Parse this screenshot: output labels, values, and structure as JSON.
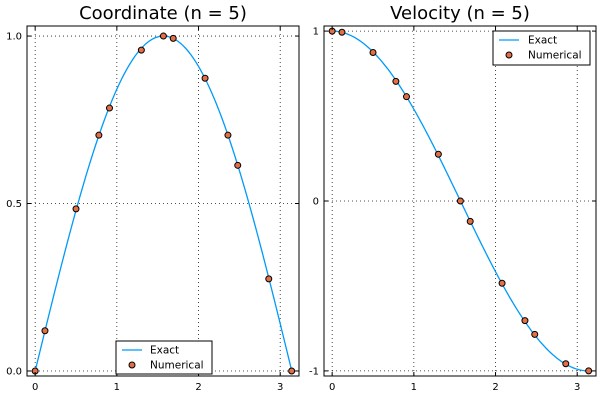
{
  "chart_data": [
    {
      "type": "scatter",
      "title": "Coordinate (n = 5)",
      "xlabel": "",
      "ylabel": "",
      "xlim": [
        -0.1,
        3.23
      ],
      "ylim": [
        -0.015,
        1.03
      ],
      "x_ticks": [
        0,
        1,
        2,
        3
      ],
      "x_tick_labels": [
        "0",
        "1",
        "2",
        "3"
      ],
      "y_ticks": [
        0,
        0.5,
        1
      ],
      "y_tick_labels": [
        "0.0",
        "0.5",
        "1.0"
      ],
      "grid": true,
      "legend_position": "bottom-right",
      "series": [
        {
          "name": "Exact",
          "kind": "line",
          "color": "#009AF9",
          "function": "sin"
        },
        {
          "name": "Numerical",
          "kind": "scatter",
          "color": "#E26F46",
          "x": [
            0.0,
            0.12,
            0.5,
            0.78,
            0.91,
            1.3,
            1.57,
            1.69,
            2.08,
            2.36,
            2.48,
            2.86,
            3.14
          ],
          "y": [
            0.0,
            0.12,
            0.484,
            0.704,
            0.785,
            0.958,
            1.0,
            0.993,
            0.874,
            0.704,
            0.614,
            0.275,
            0.0
          ]
        }
      ]
    },
    {
      "type": "scatter",
      "title": "Velocity (n = 5)",
      "xlabel": "",
      "ylabel": "",
      "xlim": [
        -0.1,
        3.23
      ],
      "ylim": [
        -1.03,
        1.03
      ],
      "x_ticks": [
        0,
        1,
        2,
        3
      ],
      "x_tick_labels": [
        "0",
        "1",
        "2",
        "3"
      ],
      "y_ticks": [
        -1,
        0,
        1
      ],
      "y_tick_labels": [
        "-1",
        "0",
        "1"
      ],
      "grid": true,
      "legend_position": "top-right",
      "series": [
        {
          "name": "Exact",
          "kind": "line",
          "color": "#009AF9",
          "function": "cos"
        },
        {
          "name": "Numerical",
          "kind": "scatter",
          "color": "#E26F46",
          "x": [
            0.0,
            0.12,
            0.5,
            0.78,
            0.91,
            1.3,
            1.57,
            1.69,
            2.08,
            2.36,
            2.48,
            2.86,
            3.14
          ],
          "y": [
            1.0,
            0.993,
            0.874,
            0.704,
            0.614,
            0.275,
            0.0,
            -0.12,
            -0.484,
            -0.704,
            -0.785,
            -0.958,
            -1.0
          ]
        }
      ]
    }
  ]
}
